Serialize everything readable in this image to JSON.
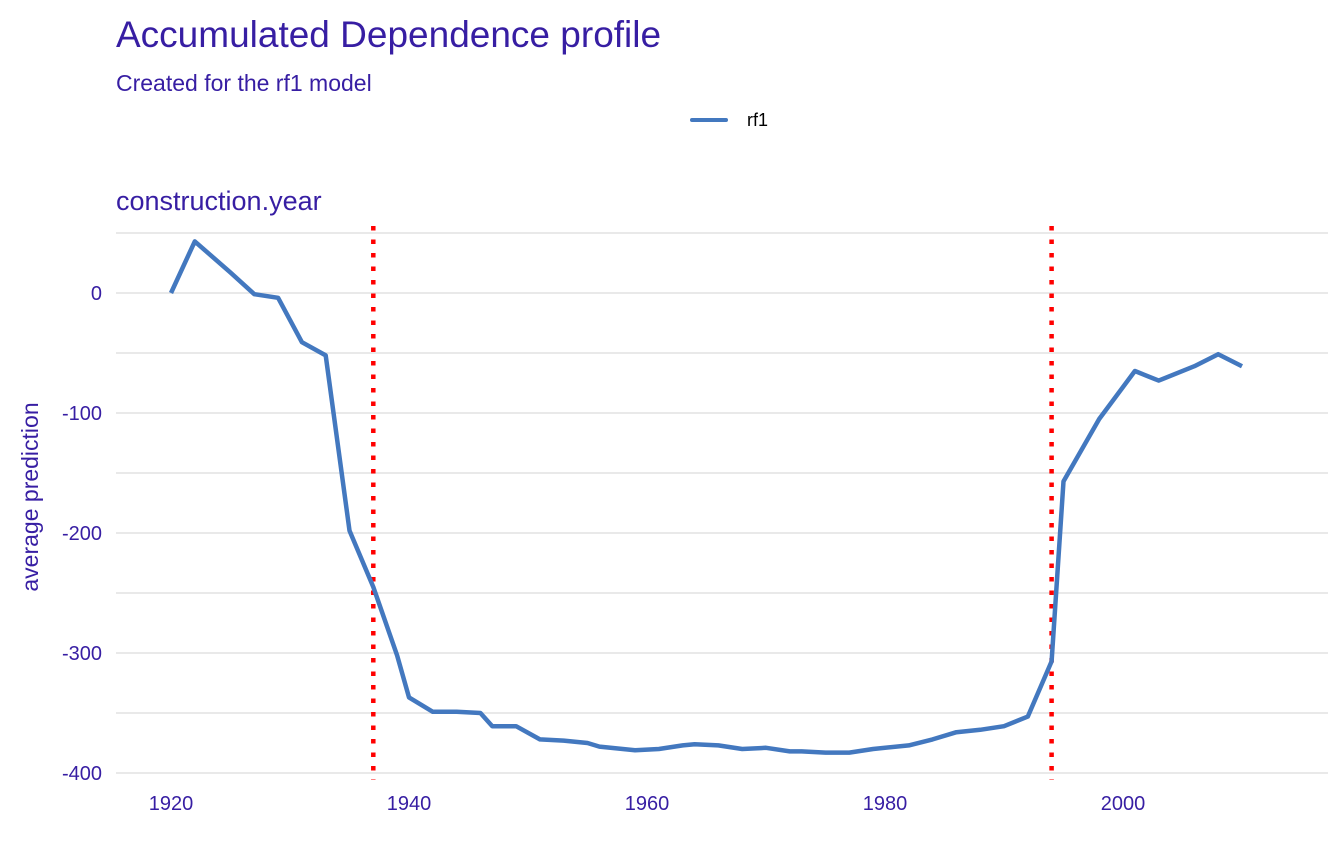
{
  "chart_data": {
    "type": "line",
    "title": "Accumulated Dependence profile",
    "subtitle": "Created for the rf1 model",
    "panel_title": "construction.year",
    "xlabel": "",
    "ylabel": "average prediction",
    "legend": {
      "position": "top",
      "entries": [
        "rf1"
      ]
    },
    "grid": true,
    "xlim": [
      1916.4,
      2013.6
    ],
    "ylim": [
      -400,
      50
    ],
    "x_ticks": [
      1920,
      1940,
      1960,
      1980,
      2000
    ],
    "x_tick_labels": [
      "1920",
      "1940",
      "1960",
      "1980",
      "2000"
    ],
    "y_ticks": [
      0,
      -100,
      -200,
      -300,
      -400
    ],
    "y_tick_labels": [
      "0",
      "-100",
      "-200",
      "-300",
      "-400"
    ],
    "series": [
      {
        "name": "rf1",
        "color": "#4378bf",
        "x": [
          1920,
          1922,
          1925,
          1927,
          1929,
          1931,
          1933,
          1935,
          1937,
          1939,
          1940,
          1942,
          1944,
          1946,
          1947,
          1949,
          1951,
          1953,
          1955,
          1956,
          1959,
          1961,
          1963,
          1964,
          1966,
          1968,
          1970,
          1972,
          1973,
          1975,
          1977,
          1979,
          1982,
          1984,
          1986,
          1988,
          1990,
          1992,
          1994,
          1995,
          1998,
          2001,
          2003,
          2006,
          2008,
          2010
        ],
        "y": [
          0,
          43,
          17,
          -1,
          -4,
          -41,
          -52,
          -198,
          -245,
          -302,
          -337,
          -349,
          -349,
          -350,
          -361,
          -361,
          -372,
          -373,
          -375,
          -378,
          -381,
          -380,
          -377,
          -376,
          -377,
          -380,
          -379,
          -382,
          -382,
          -383,
          -383,
          -380,
          -377,
          -372,
          -366,
          -364,
          -361,
          -353,
          -307,
          -157,
          -105,
          -65,
          -73,
          -61,
          -51,
          -61
        ]
      }
    ],
    "vlines": {
      "color": "#ff0000",
      "style": "dotted",
      "x": [
        1937,
        1994
      ]
    }
  }
}
